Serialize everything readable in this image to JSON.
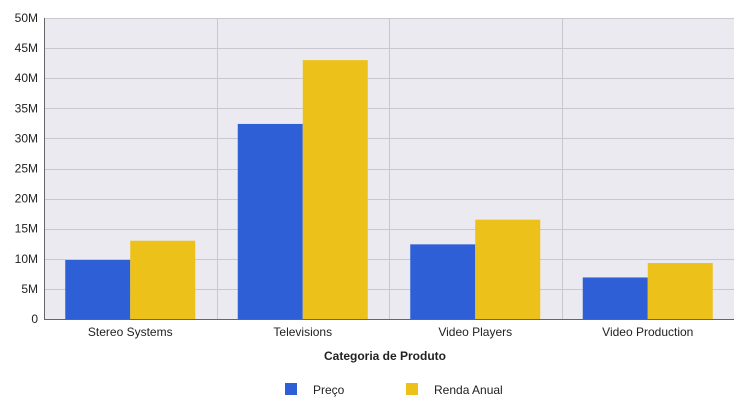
{
  "chart_data": {
    "type": "bar",
    "categories": [
      "Stereo Systems",
      "Televisions",
      "Video Players",
      "Video Production"
    ],
    "series": [
      {
        "name": "Preço",
        "color": "#2f5fd6",
        "values": [
          9.8,
          32.4,
          12.4,
          6.9
        ]
      },
      {
        "name": "Renda Anual",
        "color": "#ecc11a",
        "values": [
          13.0,
          43.0,
          16.5,
          9.3
        ]
      }
    ],
    "yticks": [
      "0",
      "5M",
      "10M",
      "15M",
      "20M",
      "25M",
      "30M",
      "35M",
      "40M",
      "45M",
      "50M"
    ],
    "ylim": [
      0,
      50
    ],
    "xlabel": "Categoria de Produto",
    "ylabel": "",
    "title": "",
    "grid": true,
    "legend": "bottom-center",
    "plot_background": "#ebeaf0",
    "grid_color": "#c9c8d0"
  }
}
